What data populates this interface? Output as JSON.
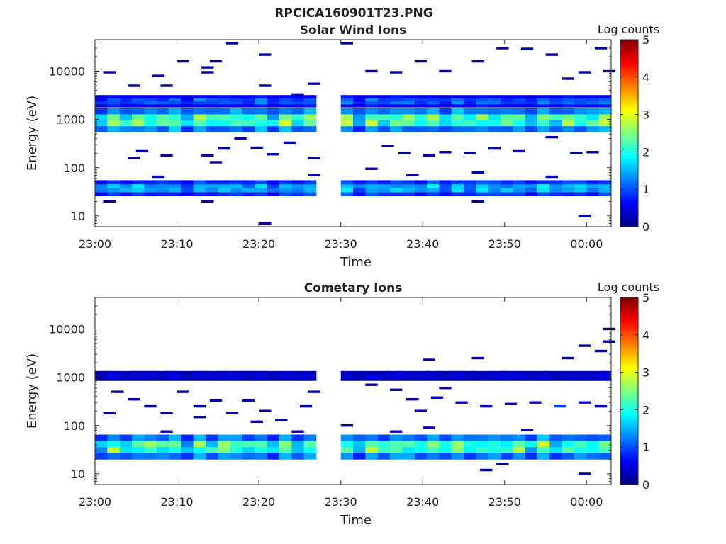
{
  "figure": {
    "title": "RPCICA160901T23.PNG"
  },
  "colors": {
    "frame": "#262626",
    "background": "#ffffff"
  },
  "chart_data": [
    {
      "type": "heatmap",
      "title": "Solar Wind Ions",
      "xlabel": "Time",
      "ylabel": "Energy (eV)",
      "y_scale": "log",
      "ylim": [
        6,
        45000
      ],
      "xlim": [
        "23:00",
        "00:03"
      ],
      "x_ticks": [
        "23:00",
        "23:10",
        "23:20",
        "23:30",
        "23:40",
        "23:50",
        "00:00"
      ],
      "y_ticks": [
        "10",
        "100",
        "1000",
        "10000"
      ],
      "colorbar": {
        "label": "Log counts",
        "range": [
          0,
          5
        ],
        "ticks": [
          "0",
          "1",
          "2",
          "3",
          "4",
          "5"
        ],
        "colormap": "jet"
      },
      "data_gap": [
        "23:27",
        "23:30"
      ],
      "bands": [
        {
          "name": "high",
          "e_low": 1800,
          "e_high": 3200,
          "peak": 1.4
        },
        {
          "name": "main",
          "e_low": 550,
          "e_high": 1700,
          "peak": 3.0
        },
        {
          "name": "proton-low",
          "e_low": 26,
          "e_high": 55,
          "peak": 2.0
        }
      ],
      "sparse_bins": [
        {
          "t": "23:01",
          "e": 9500,
          "v": 0.2
        },
        {
          "t": "23:04",
          "e": 5000,
          "v": 0.2
        },
        {
          "t": "23:07",
          "e": 8000,
          "v": 0.2
        },
        {
          "t": "23:08",
          "e": 5000,
          "v": 0.1
        },
        {
          "t": "23:10",
          "e": 16000,
          "v": 0.2
        },
        {
          "t": "23:13",
          "e": 9500,
          "v": 0.2
        },
        {
          "t": "23:13",
          "e": 12000,
          "v": 0.2
        },
        {
          "t": "23:14",
          "e": 16000,
          "v": 0.2
        },
        {
          "t": "23:16",
          "e": 38000,
          "v": 0.2
        },
        {
          "t": "23:20",
          "e": 22000,
          "v": 0.2
        },
        {
          "t": "23:20",
          "e": 5000,
          "v": 0.2
        },
        {
          "t": "23:24",
          "e": 3300,
          "v": 0.2
        },
        {
          "t": "23:26",
          "e": 5500,
          "v": 0.4
        },
        {
          "t": "23:04",
          "e": 160,
          "v": 0.2
        },
        {
          "t": "23:05",
          "e": 220,
          "v": 0.1
        },
        {
          "t": "23:08",
          "e": 180,
          "v": 0.2
        },
        {
          "t": "23:13",
          "e": 180,
          "v": 0.2
        },
        {
          "t": "23:15",
          "e": 250,
          "v": 0.2
        },
        {
          "t": "23:17",
          "e": 400,
          "v": 0.2
        },
        {
          "t": "23:19",
          "e": 260,
          "v": 0.2
        },
        {
          "t": "23:21",
          "e": 190,
          "v": 0.2
        },
        {
          "t": "23:23",
          "e": 330,
          "v": 0.2
        },
        {
          "t": "23:26",
          "e": 160,
          "v": 0.2
        },
        {
          "t": "23:07",
          "e": 65,
          "v": 0.3
        },
        {
          "t": "23:14",
          "e": 130,
          "v": 0.2
        },
        {
          "t": "23:20",
          "e": 7,
          "v": 0.2
        },
        {
          "t": "23:26",
          "e": 70,
          "v": 0.3
        },
        {
          "t": "23:01",
          "e": 20,
          "v": 0.2
        },
        {
          "t": "23:13",
          "e": 20,
          "v": 0.2
        },
        {
          "t": "23:30",
          "e": 38000,
          "v": 0.2
        },
        {
          "t": "23:33",
          "e": 10000,
          "v": 0.2
        },
        {
          "t": "23:36",
          "e": 9500,
          "v": 0.2
        },
        {
          "t": "23:39",
          "e": 16000,
          "v": 0.2
        },
        {
          "t": "23:42",
          "e": 10000,
          "v": 0.2
        },
        {
          "t": "23:46",
          "e": 16000,
          "v": 0.2
        },
        {
          "t": "23:49",
          "e": 30000,
          "v": 0.2
        },
        {
          "t": "23:52",
          "e": 29000,
          "v": 0.2
        },
        {
          "t": "23:55",
          "e": 22000,
          "v": 0.2
        },
        {
          "t": "23:57",
          "e": 7000,
          "v": 0.2
        },
        {
          "t": "23:59",
          "e": 9500,
          "v": 0.2
        },
        {
          "t": "00:02",
          "e": 10000,
          "v": 0.2
        },
        {
          "t": "00:01",
          "e": 30000,
          "v": 0.2
        },
        {
          "t": "23:35",
          "e": 280,
          "v": 0.2
        },
        {
          "t": "23:37",
          "e": 200,
          "v": 0.2
        },
        {
          "t": "23:40",
          "e": 180,
          "v": 0.2
        },
        {
          "t": "23:42",
          "e": 210,
          "v": 0.2
        },
        {
          "t": "23:45",
          "e": 200,
          "v": 0.2
        },
        {
          "t": "23:48",
          "e": 250,
          "v": 0.2
        },
        {
          "t": "23:51",
          "e": 220,
          "v": 0.2
        },
        {
          "t": "23:55",
          "e": 430,
          "v": 0.2
        },
        {
          "t": "23:58",
          "e": 200,
          "v": 0.2
        },
        {
          "t": "00:00",
          "e": 210,
          "v": 0.2
        },
        {
          "t": "23:38",
          "e": 70,
          "v": 0.2
        },
        {
          "t": "23:46",
          "e": 80,
          "v": 0.2
        },
        {
          "t": "23:33",
          "e": 95,
          "v": 0.3
        },
        {
          "t": "23:55",
          "e": 65,
          "v": 0.3
        },
        {
          "t": "23:46",
          "e": 20,
          "v": 0.2
        },
        {
          "t": "23:59",
          "e": 10,
          "v": 0.4
        }
      ]
    },
    {
      "type": "heatmap",
      "title": "Cometary Ions",
      "xlabel": "Time",
      "ylabel": "Energy (eV)",
      "y_scale": "log",
      "ylim": [
        6,
        45000
      ],
      "xlim": [
        "23:00",
        "00:03"
      ],
      "x_ticks": [
        "23:00",
        "23:10",
        "23:20",
        "23:30",
        "23:40",
        "23:50",
        "00:00"
      ],
      "y_ticks": [
        "10",
        "100",
        "1000",
        "10000"
      ],
      "colorbar": {
        "label": "Log counts",
        "range": [
          0,
          5
        ],
        "ticks": [
          "0",
          "1",
          "2",
          "3",
          "4",
          "5"
        ],
        "colormap": "jet"
      },
      "data_gap": [
        "23:27",
        "23:30"
      ],
      "bands": [
        {
          "name": "high",
          "e_low": 850,
          "e_high": 1350,
          "peak": 0.6
        },
        {
          "name": "low",
          "e_low": 20,
          "e_high": 65,
          "peak": 2.9
        }
      ],
      "sparse_bins": [
        {
          "t": "23:02",
          "e": 500,
          "v": 0.2
        },
        {
          "t": "23:04",
          "e": 350,
          "v": 0.2
        },
        {
          "t": "23:06",
          "e": 250,
          "v": 0.2
        },
        {
          "t": "23:08",
          "e": 180,
          "v": 0.2
        },
        {
          "t": "23:10",
          "e": 500,
          "v": 0.2
        },
        {
          "t": "23:12",
          "e": 250,
          "v": 0.2
        },
        {
          "t": "23:14",
          "e": 330,
          "v": 0.2
        },
        {
          "t": "23:16",
          "e": 180,
          "v": 0.2
        },
        {
          "t": "23:18",
          "e": 330,
          "v": 0.2
        },
        {
          "t": "23:20",
          "e": 200,
          "v": 0.2
        },
        {
          "t": "23:22",
          "e": 130,
          "v": 0.2
        },
        {
          "t": "23:25",
          "e": 250,
          "v": 0.3
        },
        {
          "t": "23:26",
          "e": 500,
          "v": 0.4
        },
        {
          "t": "23:19",
          "e": 120,
          "v": 0.2
        },
        {
          "t": "23:08",
          "e": 75,
          "v": 0.2
        },
        {
          "t": "23:24",
          "e": 75,
          "v": 0.2
        },
        {
          "t": "23:01",
          "e": 180,
          "v": 0.2
        },
        {
          "t": "23:12",
          "e": 150,
          "v": 0.2
        },
        {
          "t": "23:30",
          "e": 100,
          "v": 0.2
        },
        {
          "t": "23:33",
          "e": 700,
          "v": 0.2
        },
        {
          "t": "23:36",
          "e": 550,
          "v": 0.2
        },
        {
          "t": "23:39",
          "e": 200,
          "v": 0.3
        },
        {
          "t": "23:41",
          "e": 380,
          "v": 0.3
        },
        {
          "t": "23:44",
          "e": 300,
          "v": 0.4
        },
        {
          "t": "23:47",
          "e": 250,
          "v": 0.4
        },
        {
          "t": "23:50",
          "e": 280,
          "v": 0.4
        },
        {
          "t": "23:53",
          "e": 300,
          "v": 0.4
        },
        {
          "t": "23:56",
          "e": 250,
          "v": 0.9
        },
        {
          "t": "23:59",
          "e": 300,
          "v": 0.6
        },
        {
          "t": "00:01",
          "e": 250,
          "v": 0.4
        },
        {
          "t": "23:38",
          "e": 350,
          "v": 0.2
        },
        {
          "t": "23:42",
          "e": 600,
          "v": 0.2
        },
        {
          "t": "23:40",
          "e": 2300,
          "v": 0.2
        },
        {
          "t": "23:46",
          "e": 2500,
          "v": 0.2
        },
        {
          "t": "23:57",
          "e": 2500,
          "v": 0.2
        },
        {
          "t": "23:59",
          "e": 4500,
          "v": 0.2
        },
        {
          "t": "00:02",
          "e": 5500,
          "v": 0.2
        },
        {
          "t": "00:02",
          "e": 10000,
          "v": 0.2
        },
        {
          "t": "00:01",
          "e": 3500,
          "v": 0.2
        },
        {
          "t": "23:36",
          "e": 75,
          "v": 0.4
        },
        {
          "t": "23:47",
          "e": 12,
          "v": 0.2
        },
        {
          "t": "23:49",
          "e": 16,
          "v": 0.2
        },
        {
          "t": "23:59",
          "e": 10,
          "v": 0.3
        },
        {
          "t": "23:40",
          "e": 90,
          "v": 0.2
        },
        {
          "t": "23:52",
          "e": 80,
          "v": 0.2
        }
      ]
    }
  ]
}
